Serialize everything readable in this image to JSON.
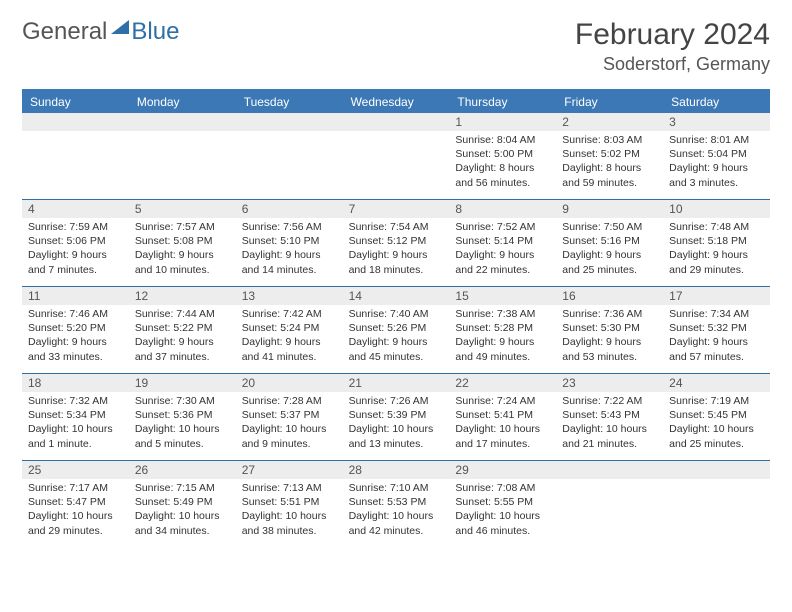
{
  "logo": {
    "general": "General",
    "blue": "Blue"
  },
  "title": {
    "month": "February 2024",
    "location": "Soderstorf, Germany"
  },
  "colors": {
    "header_bg": "#3b78b5",
    "header_text": "#ffffff",
    "daynum_bg": "#ededed",
    "row_border": "#2f6fa7",
    "body_text": "#333333",
    "logo_blue": "#2f6fa7",
    "logo_gray": "#555555"
  },
  "day_names": [
    "Sunday",
    "Monday",
    "Tuesday",
    "Wednesday",
    "Thursday",
    "Friday",
    "Saturday"
  ],
  "weeks": [
    [
      {
        "n": "",
        "sr": "",
        "ss": "",
        "dl": ""
      },
      {
        "n": "",
        "sr": "",
        "ss": "",
        "dl": ""
      },
      {
        "n": "",
        "sr": "",
        "ss": "",
        "dl": ""
      },
      {
        "n": "",
        "sr": "",
        "ss": "",
        "dl": ""
      },
      {
        "n": "1",
        "sr": "Sunrise: 8:04 AM",
        "ss": "Sunset: 5:00 PM",
        "dl": "Daylight: 8 hours and 56 minutes."
      },
      {
        "n": "2",
        "sr": "Sunrise: 8:03 AM",
        "ss": "Sunset: 5:02 PM",
        "dl": "Daylight: 8 hours and 59 minutes."
      },
      {
        "n": "3",
        "sr": "Sunrise: 8:01 AM",
        "ss": "Sunset: 5:04 PM",
        "dl": "Daylight: 9 hours and 3 minutes."
      }
    ],
    [
      {
        "n": "4",
        "sr": "Sunrise: 7:59 AM",
        "ss": "Sunset: 5:06 PM",
        "dl": "Daylight: 9 hours and 7 minutes."
      },
      {
        "n": "5",
        "sr": "Sunrise: 7:57 AM",
        "ss": "Sunset: 5:08 PM",
        "dl": "Daylight: 9 hours and 10 minutes."
      },
      {
        "n": "6",
        "sr": "Sunrise: 7:56 AM",
        "ss": "Sunset: 5:10 PM",
        "dl": "Daylight: 9 hours and 14 minutes."
      },
      {
        "n": "7",
        "sr": "Sunrise: 7:54 AM",
        "ss": "Sunset: 5:12 PM",
        "dl": "Daylight: 9 hours and 18 minutes."
      },
      {
        "n": "8",
        "sr": "Sunrise: 7:52 AM",
        "ss": "Sunset: 5:14 PM",
        "dl": "Daylight: 9 hours and 22 minutes."
      },
      {
        "n": "9",
        "sr": "Sunrise: 7:50 AM",
        "ss": "Sunset: 5:16 PM",
        "dl": "Daylight: 9 hours and 25 minutes."
      },
      {
        "n": "10",
        "sr": "Sunrise: 7:48 AM",
        "ss": "Sunset: 5:18 PM",
        "dl": "Daylight: 9 hours and 29 minutes."
      }
    ],
    [
      {
        "n": "11",
        "sr": "Sunrise: 7:46 AM",
        "ss": "Sunset: 5:20 PM",
        "dl": "Daylight: 9 hours and 33 minutes."
      },
      {
        "n": "12",
        "sr": "Sunrise: 7:44 AM",
        "ss": "Sunset: 5:22 PM",
        "dl": "Daylight: 9 hours and 37 minutes."
      },
      {
        "n": "13",
        "sr": "Sunrise: 7:42 AM",
        "ss": "Sunset: 5:24 PM",
        "dl": "Daylight: 9 hours and 41 minutes."
      },
      {
        "n": "14",
        "sr": "Sunrise: 7:40 AM",
        "ss": "Sunset: 5:26 PM",
        "dl": "Daylight: 9 hours and 45 minutes."
      },
      {
        "n": "15",
        "sr": "Sunrise: 7:38 AM",
        "ss": "Sunset: 5:28 PM",
        "dl": "Daylight: 9 hours and 49 minutes."
      },
      {
        "n": "16",
        "sr": "Sunrise: 7:36 AM",
        "ss": "Sunset: 5:30 PM",
        "dl": "Daylight: 9 hours and 53 minutes."
      },
      {
        "n": "17",
        "sr": "Sunrise: 7:34 AM",
        "ss": "Sunset: 5:32 PM",
        "dl": "Daylight: 9 hours and 57 minutes."
      }
    ],
    [
      {
        "n": "18",
        "sr": "Sunrise: 7:32 AM",
        "ss": "Sunset: 5:34 PM",
        "dl": "Daylight: 10 hours and 1 minute."
      },
      {
        "n": "19",
        "sr": "Sunrise: 7:30 AM",
        "ss": "Sunset: 5:36 PM",
        "dl": "Daylight: 10 hours and 5 minutes."
      },
      {
        "n": "20",
        "sr": "Sunrise: 7:28 AM",
        "ss": "Sunset: 5:37 PM",
        "dl": "Daylight: 10 hours and 9 minutes."
      },
      {
        "n": "21",
        "sr": "Sunrise: 7:26 AM",
        "ss": "Sunset: 5:39 PM",
        "dl": "Daylight: 10 hours and 13 minutes."
      },
      {
        "n": "22",
        "sr": "Sunrise: 7:24 AM",
        "ss": "Sunset: 5:41 PM",
        "dl": "Daylight: 10 hours and 17 minutes."
      },
      {
        "n": "23",
        "sr": "Sunrise: 7:22 AM",
        "ss": "Sunset: 5:43 PM",
        "dl": "Daylight: 10 hours and 21 minutes."
      },
      {
        "n": "24",
        "sr": "Sunrise: 7:19 AM",
        "ss": "Sunset: 5:45 PM",
        "dl": "Daylight: 10 hours and 25 minutes."
      }
    ],
    [
      {
        "n": "25",
        "sr": "Sunrise: 7:17 AM",
        "ss": "Sunset: 5:47 PM",
        "dl": "Daylight: 10 hours and 29 minutes."
      },
      {
        "n": "26",
        "sr": "Sunrise: 7:15 AM",
        "ss": "Sunset: 5:49 PM",
        "dl": "Daylight: 10 hours and 34 minutes."
      },
      {
        "n": "27",
        "sr": "Sunrise: 7:13 AM",
        "ss": "Sunset: 5:51 PM",
        "dl": "Daylight: 10 hours and 38 minutes."
      },
      {
        "n": "28",
        "sr": "Sunrise: 7:10 AM",
        "ss": "Sunset: 5:53 PM",
        "dl": "Daylight: 10 hours and 42 minutes."
      },
      {
        "n": "29",
        "sr": "Sunrise: 7:08 AM",
        "ss": "Sunset: 5:55 PM",
        "dl": "Daylight: 10 hours and 46 minutes."
      },
      {
        "n": "",
        "sr": "",
        "ss": "",
        "dl": ""
      },
      {
        "n": "",
        "sr": "",
        "ss": "",
        "dl": ""
      }
    ]
  ]
}
